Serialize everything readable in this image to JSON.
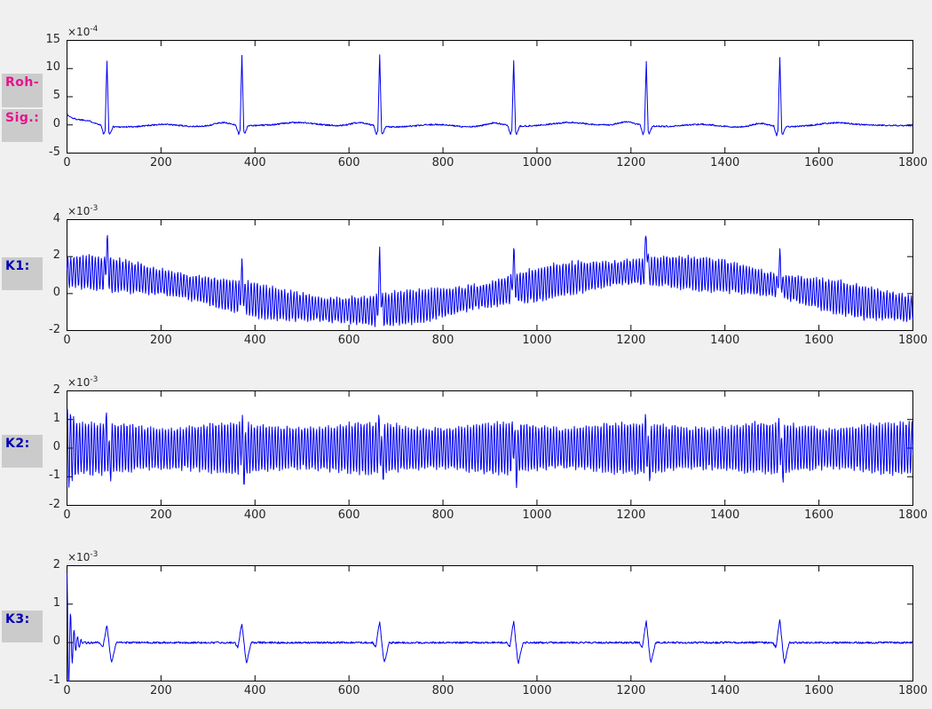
{
  "figure": {
    "background": "#f0f0f0",
    "plot_background": "#ffffff",
    "label_box_color": "#cbcbcb",
    "line_color": "#0000ee",
    "axis_color": "#000000",
    "tick_label_color": "#262626",
    "label_color_raw": "#e8128c",
    "label_color_channels": "#0000b4"
  },
  "chart_data": [
    {
      "id": "roh_sig",
      "type": "line",
      "label_lines": [
        "Roh-",
        "Sig.:"
      ],
      "exp_base": "×10",
      "exp_sup": "-4",
      "xlim": [
        0,
        1800
      ],
      "xticks": [
        0,
        200,
        400,
        600,
        800,
        1000,
        1200,
        1400,
        1600,
        1800
      ],
      "ylim": [
        -5,
        15
      ],
      "yticks": [
        -5,
        0,
        5,
        10,
        15
      ],
      "grid": false,
      "legend": null,
      "signal": {
        "baseline": {
          "offset": -0.25,
          "cos_amp": 0.18,
          "cos_period": 620,
          "cos_phase": 140
        },
        "noise": 0.13,
        "init": {
          "type": "decay",
          "amp": 2.0,
          "tau": 28
        },
        "beats": {
          "positions": [
            85,
            372,
            665,
            950,
            1232,
            1516
          ],
          "r_amps": [
            11.7,
            12.6,
            12.8,
            11.7,
            11.5,
            12.5
          ],
          "r_width": 4,
          "q": {
            "offset": -7,
            "amp": -1.6,
            "width": 6
          },
          "s": {
            "offset": 6,
            "amp": -1.4,
            "width": 7
          },
          "p_wave": {
            "offset": -42,
            "amp": 0.65,
            "width": 26
          },
          "t_wave": {
            "offset": 118,
            "amp": 0.5,
            "width": 48
          }
        }
      }
    },
    {
      "id": "k1",
      "type": "line",
      "label_lines": [
        "K1:"
      ],
      "exp_base": "×10",
      "exp_sup": "-3",
      "xlim": [
        0,
        1800
      ],
      "xticks": [
        0,
        200,
        400,
        600,
        800,
        1000,
        1200,
        1400,
        1600,
        1800
      ],
      "ylim": [
        -2,
        4
      ],
      "yticks": [
        -2,
        0,
        2,
        4
      ],
      "grid": false,
      "legend": null,
      "signal": {
        "baseline": {
          "offset": 0.15,
          "cos_amp": 1.05,
          "cos_period": 1270,
          "cos_phase": 20
        },
        "osc": {
          "amp": 0.78,
          "period": 6.5,
          "mod_amp": 0.14,
          "mod_period": 317
        },
        "noise": 0.1,
        "beats": {
          "positions": [
            85,
            372,
            665,
            950,
            1232,
            1516
          ],
          "r_amps": [
            1.5,
            1.2,
            2.5,
            1.6,
            1.85,
            1.35
          ],
          "r_width": 5
        }
      }
    },
    {
      "id": "k2",
      "type": "line",
      "label_lines": [
        "K2:"
      ],
      "exp_base": "×10",
      "exp_sup": "-3",
      "xlim": [
        0,
        1800
      ],
      "xticks": [
        0,
        200,
        400,
        600,
        800,
        1000,
        1200,
        1400,
        1600,
        1800
      ],
      "ylim": [
        -2,
        2
      ],
      "yticks": [
        -2,
        -1,
        0,
        1,
        2
      ],
      "grid": false,
      "legend": null,
      "signal": {
        "baseline": {
          "offset": 0
        },
        "osc": {
          "amp": 0.8,
          "period": 6.3,
          "mod_amp": 0.1,
          "mod_period": 283
        },
        "noise": 0.07,
        "init": {
          "type": "ring",
          "amp": 1.2,
          "tau": 10,
          "period": 7
        },
        "beats": {
          "positions": [
            85,
            372,
            665,
            950,
            1232,
            1516
          ],
          "r_amps": [
            0.55,
            0.6,
            0.65,
            0.55,
            0.5,
            0.6
          ],
          "r_width": 4,
          "s": {
            "offset": 5,
            "amp": -0.55,
            "width": 6
          }
        }
      }
    },
    {
      "id": "k3",
      "type": "line",
      "label_lines": [
        "K3:"
      ],
      "exp_base": "×10",
      "exp_sup": "-3",
      "xlim": [
        0,
        1800
      ],
      "xticks": [
        0,
        200,
        400,
        600,
        800,
        1000,
        1200,
        1400,
        1600,
        1800
      ],
      "ylim": [
        -1,
        2
      ],
      "yticks": [
        -1,
        0,
        1,
        2
      ],
      "grid": false,
      "legend": null,
      "signal": {
        "baseline": {
          "offset": 0
        },
        "noise": 0.025,
        "init": {
          "type": "ring",
          "amp": 1.8,
          "tau": 9,
          "period": 7.5
        },
        "beats": {
          "positions": [
            85,
            372,
            665,
            950,
            1232,
            1516
          ],
          "r_amps": [
            0.45,
            0.5,
            0.55,
            0.55,
            0.55,
            0.6
          ],
          "r_width": 8,
          "q": {
            "offset": -9,
            "amp": -0.12,
            "width": 6
          },
          "s": {
            "offset": 10,
            "amp": -0.52,
            "width": 10
          }
        }
      }
    }
  ]
}
